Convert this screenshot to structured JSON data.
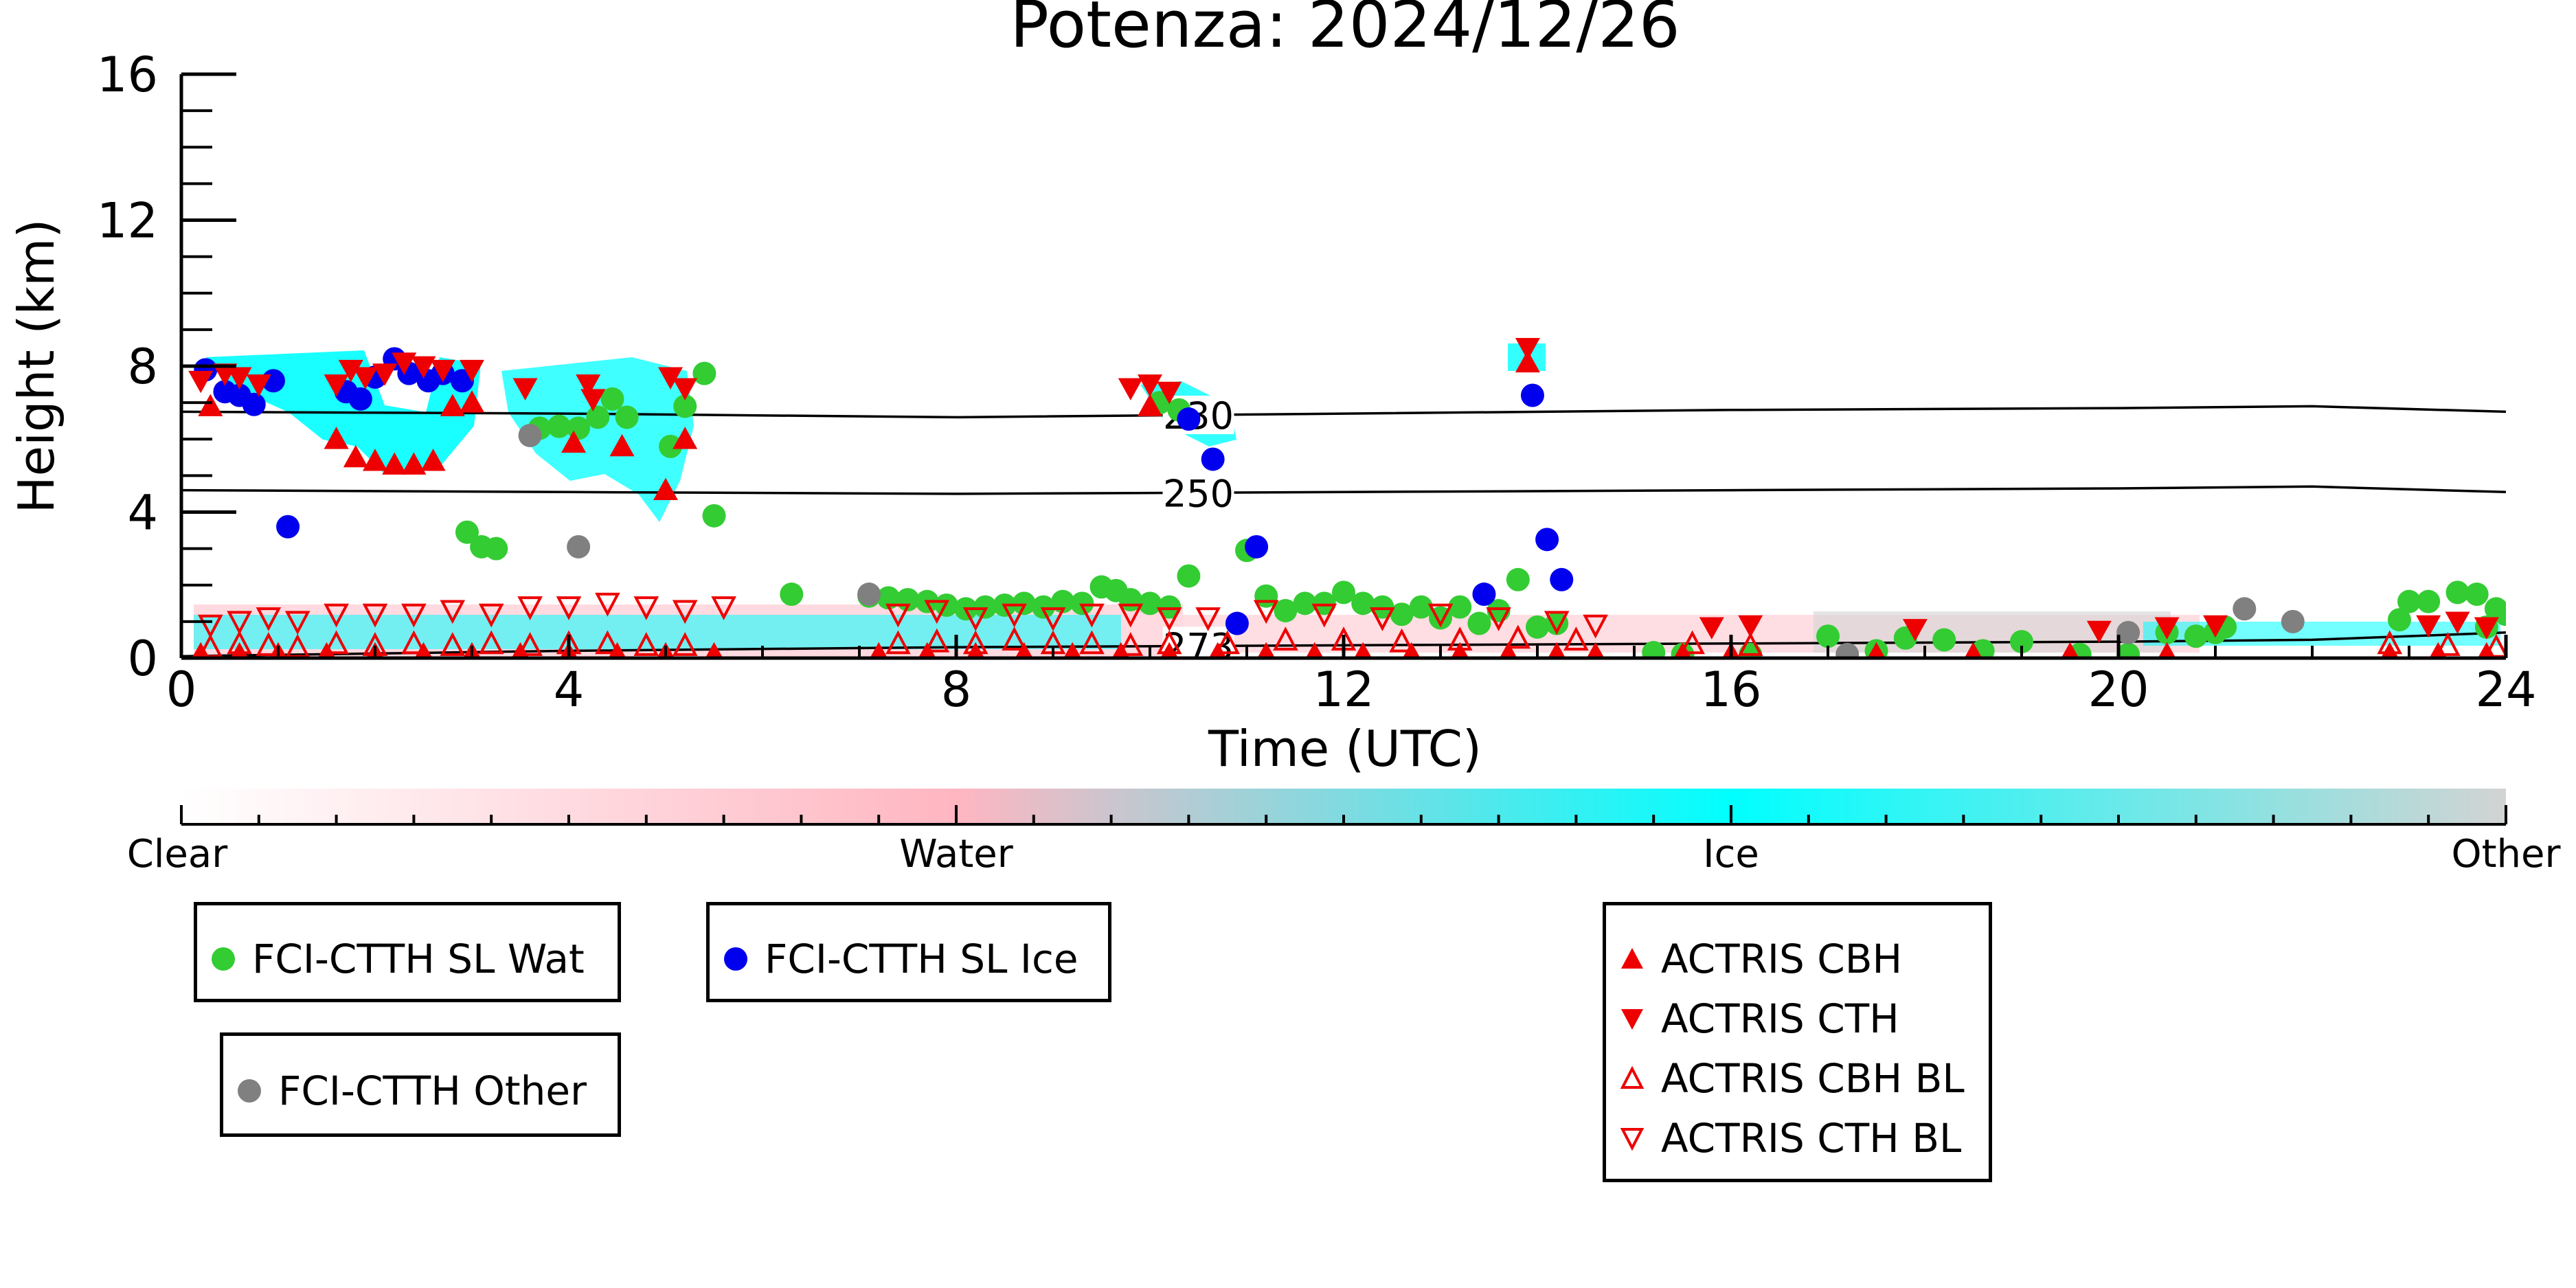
{
  "chart_data": {
    "type": "scatter",
    "title": "Potenza: 2024/12/26",
    "xlabel": "Time (UTC)",
    "ylabel": "Height (km)",
    "xlim": [
      0,
      24
    ],
    "ylim": [
      0,
      16
    ],
    "xticks": [
      0,
      4,
      8,
      12,
      16,
      20,
      24
    ],
    "yticks": [
      0,
      4,
      8,
      12,
      16
    ],
    "colorbar": {
      "labels": [
        "Clear",
        "Water",
        "Ice",
        "Other"
      ],
      "stops": [
        {
          "at": 0,
          "color": "#ffffff"
        },
        {
          "at": 0.333,
          "color": "#ffb6c1"
        },
        {
          "at": 0.667,
          "color": "#00ffff"
        },
        {
          "at": 1,
          "color": "#d3d3d3"
        }
      ]
    },
    "contours": [
      {
        "label": "230",
        "label_x": 10.5,
        "points": [
          [
            0,
            6.75
          ],
          [
            4,
            6.7
          ],
          [
            8,
            6.6
          ],
          [
            12,
            6.7
          ],
          [
            16,
            6.8
          ],
          [
            20,
            6.85
          ],
          [
            22,
            6.9
          ],
          [
            24,
            6.75
          ]
        ]
      },
      {
        "label": "250",
        "label_x": 10.5,
        "points": [
          [
            0,
            4.6
          ],
          [
            4,
            4.55
          ],
          [
            8,
            4.5
          ],
          [
            12,
            4.55
          ],
          [
            16,
            4.6
          ],
          [
            20,
            4.65
          ],
          [
            22,
            4.7
          ],
          [
            24,
            4.55
          ]
        ]
      },
      {
        "label": "273",
        "label_x": 10.5,
        "points": [
          [
            0,
            0.05
          ],
          [
            4,
            0.2
          ],
          [
            8,
            0.3
          ],
          [
            12,
            0.35
          ],
          [
            16,
            0.4
          ],
          [
            20,
            0.45
          ],
          [
            22,
            0.5
          ],
          [
            24,
            0.7
          ]
        ]
      }
    ],
    "series": [
      {
        "name": "FCI-CTTH SL Wat",
        "color": "#33cc33",
        "marker": "circle",
        "points": [
          [
            2.95,
            3.45
          ],
          [
            3.1,
            3.05
          ],
          [
            3.25,
            3.0
          ],
          [
            3.7,
            6.3
          ],
          [
            3.9,
            6.35
          ],
          [
            4.1,
            6.3
          ],
          [
            4.3,
            6.6
          ],
          [
            4.45,
            7.1
          ],
          [
            4.6,
            6.6
          ],
          [
            5.05,
            5.8
          ],
          [
            5.2,
            6.9
          ],
          [
            5.4,
            7.8
          ],
          [
            5.5,
            3.9
          ],
          [
            6.3,
            1.75
          ],
          [
            7.1,
            1.7
          ],
          [
            7.3,
            1.65
          ],
          [
            7.5,
            1.6
          ],
          [
            7.7,
            1.55
          ],
          [
            7.9,
            1.45
          ],
          [
            8.1,
            1.35
          ],
          [
            8.3,
            1.4
          ],
          [
            8.5,
            1.45
          ],
          [
            8.7,
            1.5
          ],
          [
            8.9,
            1.4
          ],
          [
            9.1,
            1.55
          ],
          [
            9.3,
            1.5
          ],
          [
            9.5,
            1.95
          ],
          [
            9.65,
            1.85
          ],
          [
            9.8,
            1.6
          ],
          [
            10.0,
            1.5
          ],
          [
            10.2,
            1.4
          ],
          [
            10.4,
            2.25
          ],
          [
            10.1,
            7.0
          ],
          [
            10.3,
            6.8
          ],
          [
            11.0,
            2.95
          ],
          [
            11.2,
            1.7
          ],
          [
            11.4,
            1.3
          ],
          [
            11.6,
            1.5
          ],
          [
            11.8,
            1.5
          ],
          [
            12.0,
            1.8
          ],
          [
            12.2,
            1.5
          ],
          [
            12.4,
            1.4
          ],
          [
            12.6,
            1.2
          ],
          [
            12.8,
            1.4
          ],
          [
            13.0,
            1.1
          ],
          [
            13.2,
            1.4
          ],
          [
            13.4,
            0.95
          ],
          [
            13.6,
            1.3
          ],
          [
            13.8,
            2.15
          ],
          [
            14.0,
            0.85
          ],
          [
            14.2,
            0.95
          ],
          [
            15.2,
            0.15
          ],
          [
            15.5,
            0.1
          ],
          [
            16.2,
            0.1
          ],
          [
            17.0,
            0.6
          ],
          [
            17.5,
            0.2
          ],
          [
            17.8,
            0.55
          ],
          [
            18.2,
            0.5
          ],
          [
            18.6,
            0.2
          ],
          [
            19.0,
            0.45
          ],
          [
            19.6,
            0.1
          ],
          [
            20.1,
            0.1
          ],
          [
            20.5,
            0.7
          ],
          [
            20.8,
            0.6
          ],
          [
            21.0,
            0.7
          ],
          [
            21.1,
            0.85
          ],
          [
            22.9,
            1.05
          ],
          [
            23.0,
            1.55
          ],
          [
            23.2,
            1.55
          ],
          [
            23.5,
            1.8
          ],
          [
            23.7,
            1.75
          ],
          [
            23.9,
            1.35
          ],
          [
            24.0,
            1.2
          ],
          [
            23.8,
            0.85
          ]
        ]
      },
      {
        "name": "FCI-CTTH SL Ice",
        "color": "#0000ee",
        "marker": "circle",
        "points": [
          [
            0.25,
            7.9
          ],
          [
            0.45,
            7.3
          ],
          [
            0.6,
            7.2
          ],
          [
            0.75,
            6.95
          ],
          [
            0.95,
            7.6
          ],
          [
            1.1,
            3.6
          ],
          [
            1.7,
            7.3
          ],
          [
            1.85,
            7.1
          ],
          [
            2.0,
            7.7
          ],
          [
            2.2,
            8.2
          ],
          [
            2.35,
            7.8
          ],
          [
            2.55,
            7.6
          ],
          [
            2.7,
            7.8
          ],
          [
            2.9,
            7.6
          ],
          [
            10.4,
            6.55
          ],
          [
            10.65,
            5.45
          ],
          [
            10.9,
            0.95
          ],
          [
            11.1,
            3.05
          ],
          [
            13.45,
            1.75
          ],
          [
            13.95,
            7.2
          ],
          [
            14.1,
            3.25
          ],
          [
            14.25,
            2.15
          ]
        ]
      },
      {
        "name": "FCI-CTTH Other",
        "color": "#808080",
        "marker": "circle",
        "points": [
          [
            3.6,
            6.1
          ],
          [
            4.1,
            3.05
          ],
          [
            7.1,
            1.75
          ],
          [
            17.2,
            0.1
          ],
          [
            20.1,
            0.7
          ],
          [
            21.3,
            1.35
          ],
          [
            21.8,
            1.0
          ]
        ]
      },
      {
        "name": "ACTRIS CBH",
        "color": "#ee0000",
        "marker": "triangle-up",
        "points": [
          [
            0.3,
            6.9
          ],
          [
            1.6,
            6.0
          ],
          [
            1.8,
            5.5
          ],
          [
            2.0,
            5.4
          ],
          [
            2.2,
            5.3
          ],
          [
            2.4,
            5.3
          ],
          [
            2.6,
            5.4
          ],
          [
            2.8,
            6.9
          ],
          [
            3.0,
            7.0
          ],
          [
            4.05,
            5.9
          ],
          [
            4.55,
            5.8
          ],
          [
            5.0,
            4.6
          ],
          [
            5.2,
            6.0
          ],
          [
            10.0,
            6.9
          ],
          [
            13.9,
            8.1
          ],
          [
            0.2,
            0.1
          ],
          [
            0.6,
            0.1
          ],
          [
            1.0,
            0.1
          ],
          [
            1.5,
            0.1
          ],
          [
            2.0,
            0.1
          ],
          [
            2.5,
            0.1
          ],
          [
            3.0,
            0.1
          ],
          [
            3.5,
            0.1
          ],
          [
            4.0,
            0.1
          ],
          [
            4.5,
            0.1
          ],
          [
            5.0,
            0.1
          ],
          [
            5.5,
            0.1
          ],
          [
            7.2,
            0.1
          ],
          [
            7.7,
            0.1
          ],
          [
            8.2,
            0.1
          ],
          [
            8.7,
            0.1
          ],
          [
            9.2,
            0.1
          ],
          [
            9.7,
            0.1
          ],
          [
            10.2,
            0.1
          ],
          [
            10.7,
            0.1
          ],
          [
            11.2,
            0.1
          ],
          [
            11.7,
            0.1
          ],
          [
            12.2,
            0.1
          ],
          [
            12.7,
            0.1
          ],
          [
            13.2,
            0.1
          ],
          [
            13.7,
            0.1
          ],
          [
            14.2,
            0.1
          ],
          [
            14.6,
            0.1
          ],
          [
            15.5,
            0.1
          ],
          [
            16.0,
            0.1
          ],
          [
            17.5,
            0.1
          ],
          [
            18.5,
            0.1
          ],
          [
            19.5,
            0.1
          ],
          [
            20.5,
            0.1
          ],
          [
            22.8,
            0.1
          ],
          [
            23.3,
            0.1
          ],
          [
            23.8,
            0.1
          ]
        ]
      },
      {
        "name": "ACTRIS CTH",
        "color": "#ee0000",
        "marker": "triangle-down",
        "points": [
          [
            0.2,
            7.6
          ],
          [
            0.45,
            7.8
          ],
          [
            0.6,
            7.7
          ],
          [
            0.8,
            7.5
          ],
          [
            1.6,
            7.5
          ],
          [
            1.75,
            7.9
          ],
          [
            1.9,
            7.7
          ],
          [
            2.1,
            7.8
          ],
          [
            2.3,
            8.1
          ],
          [
            2.5,
            8.0
          ],
          [
            2.7,
            7.9
          ],
          [
            3.0,
            7.9
          ],
          [
            3.55,
            7.4
          ],
          [
            4.2,
            7.5
          ],
          [
            4.25,
            7.1
          ],
          [
            5.05,
            7.7
          ],
          [
            5.2,
            7.4
          ],
          [
            9.8,
            7.4
          ],
          [
            10.0,
            7.5
          ],
          [
            10.2,
            7.3
          ],
          [
            13.9,
            8.5
          ],
          [
            15.8,
            0.85
          ],
          [
            16.2,
            0.9
          ],
          [
            17.9,
            0.8
          ],
          [
            19.8,
            0.75
          ],
          [
            20.5,
            0.85
          ],
          [
            21.0,
            0.9
          ],
          [
            23.2,
            0.9
          ],
          [
            23.5,
            1.0
          ],
          [
            23.8,
            0.85
          ]
        ]
      },
      {
        "name": "ACTRIS CBH BL",
        "color": "#ee0000",
        "marker": "triangle-up-open",
        "points": [
          [
            0.3,
            0.3
          ],
          [
            0.6,
            0.4
          ],
          [
            0.9,
            0.35
          ],
          [
            1.2,
            0.3
          ],
          [
            1.6,
            0.4
          ],
          [
            2.0,
            0.35
          ],
          [
            2.4,
            0.4
          ],
          [
            2.8,
            0.35
          ],
          [
            3.2,
            0.4
          ],
          [
            3.6,
            0.35
          ],
          [
            4.0,
            0.4
          ],
          [
            4.4,
            0.4
          ],
          [
            4.8,
            0.35
          ],
          [
            5.2,
            0.35
          ],
          [
            7.4,
            0.4
          ],
          [
            7.8,
            0.45
          ],
          [
            8.2,
            0.4
          ],
          [
            8.6,
            0.5
          ],
          [
            9.0,
            0.4
          ],
          [
            9.4,
            0.4
          ],
          [
            9.8,
            0.35
          ],
          [
            10.2,
            0.4
          ],
          [
            10.8,
            0.4
          ],
          [
            11.4,
            0.5
          ],
          [
            12.0,
            0.5
          ],
          [
            12.6,
            0.45
          ],
          [
            13.2,
            0.5
          ],
          [
            13.8,
            0.55
          ],
          [
            14.4,
            0.5
          ],
          [
            15.6,
            0.4
          ],
          [
            16.2,
            0.35
          ],
          [
            22.8,
            0.4
          ],
          [
            23.4,
            0.35
          ],
          [
            23.9,
            0.3
          ]
        ]
      },
      {
        "name": "ACTRIS CTH BL",
        "color": "#ee0000",
        "marker": "triangle-down-open",
        "points": [
          [
            0.3,
            0.9
          ],
          [
            0.6,
            1.0
          ],
          [
            0.9,
            1.1
          ],
          [
            1.2,
            1.0
          ],
          [
            1.6,
            1.2
          ],
          [
            2.0,
            1.2
          ],
          [
            2.4,
            1.2
          ],
          [
            2.8,
            1.3
          ],
          [
            3.2,
            1.2
          ],
          [
            3.6,
            1.4
          ],
          [
            4.0,
            1.4
          ],
          [
            4.4,
            1.5
          ],
          [
            4.8,
            1.4
          ],
          [
            5.2,
            1.3
          ],
          [
            5.6,
            1.4
          ],
          [
            7.4,
            1.2
          ],
          [
            7.8,
            1.3
          ],
          [
            8.2,
            1.1
          ],
          [
            8.6,
            1.2
          ],
          [
            9.0,
            1.1
          ],
          [
            9.4,
            1.2
          ],
          [
            9.8,
            1.2
          ],
          [
            10.2,
            1.1
          ],
          [
            10.6,
            1.1
          ],
          [
            11.2,
            1.3
          ],
          [
            11.8,
            1.2
          ],
          [
            12.4,
            1.1
          ],
          [
            13.0,
            1.2
          ],
          [
            13.6,
            1.1
          ],
          [
            14.2,
            1.0
          ],
          [
            14.6,
            0.9
          ]
        ]
      }
    ]
  }
}
